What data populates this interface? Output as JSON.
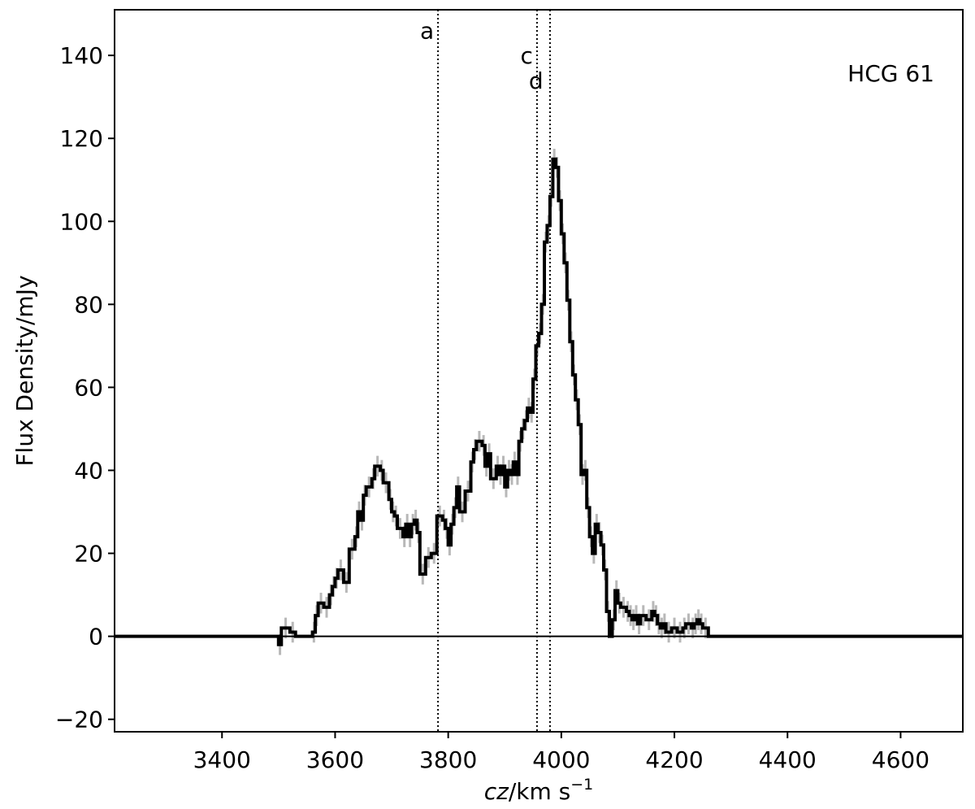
{
  "chart_data": {
    "type": "line",
    "title": "",
    "annotation": "HCG 61",
    "xlabel_italic": "cz",
    "xlabel_rest": "/km s",
    "xlabel_exp": "−1",
    "ylabel": "Flux Density/mJy",
    "xlim": [
      3210,
      4710
    ],
    "ylim": [
      -23,
      151
    ],
    "xticks": [
      3400,
      3600,
      3800,
      4000,
      4200,
      4400,
      4600
    ],
    "yticks": [
      -20,
      0,
      20,
      40,
      60,
      80,
      100,
      120,
      140
    ],
    "xtick_labels": [
      "3400",
      "3600",
      "3800",
      "4000",
      "4200",
      "4400",
      "4600"
    ],
    "ytick_labels": [
      "−20",
      "0",
      "20",
      "40",
      "60",
      "80",
      "100",
      "120",
      "140"
    ],
    "grid": false,
    "zero_line": true,
    "step_spectrum": [
      [
        3210,
        0
      ],
      [
        3500,
        0
      ],
      [
        3500,
        -2
      ],
      [
        3505,
        -2
      ],
      [
        3505,
        2
      ],
      [
        3520,
        2
      ],
      [
        3520,
        1
      ],
      [
        3530,
        1
      ],
      [
        3530,
        0
      ],
      [
        3560,
        0
      ],
      [
        3560,
        1
      ],
      [
        3565,
        1
      ],
      [
        3565,
        5
      ],
      [
        3570,
        5
      ],
      [
        3570,
        8
      ],
      [
        3580,
        8
      ],
      [
        3580,
        7
      ],
      [
        3590,
        7
      ],
      [
        3590,
        10
      ],
      [
        3595,
        10
      ],
      [
        3595,
        12
      ],
      [
        3600,
        12
      ],
      [
        3600,
        14
      ],
      [
        3605,
        14
      ],
      [
        3605,
        16
      ],
      [
        3615,
        16
      ],
      [
        3615,
        13
      ],
      [
        3625,
        13
      ],
      [
        3625,
        21
      ],
      [
        3635,
        21
      ],
      [
        3635,
        24
      ],
      [
        3640,
        24
      ],
      [
        3640,
        30
      ],
      [
        3645,
        30
      ],
      [
        3645,
        28
      ],
      [
        3650,
        28
      ],
      [
        3650,
        34
      ],
      [
        3655,
        34
      ],
      [
        3655,
        36
      ],
      [
        3665,
        36
      ],
      [
        3665,
        38
      ],
      [
        3670,
        38
      ],
      [
        3670,
        41
      ],
      [
        3680,
        41
      ],
      [
        3680,
        40
      ],
      [
        3685,
        40
      ],
      [
        3685,
        37
      ],
      [
        3695,
        37
      ],
      [
        3695,
        33
      ],
      [
        3700,
        33
      ],
      [
        3700,
        30
      ],
      [
        3705,
        30
      ],
      [
        3705,
        29
      ],
      [
        3710,
        29
      ],
      [
        3710,
        26
      ],
      [
        3720,
        26
      ],
      [
        3720,
        24
      ],
      [
        3725,
        24
      ],
      [
        3725,
        27
      ],
      [
        3730,
        27
      ],
      [
        3730,
        24
      ],
      [
        3735,
        24
      ],
      [
        3735,
        27
      ],
      [
        3740,
        27
      ],
      [
        3740,
        28
      ],
      [
        3745,
        28
      ],
      [
        3745,
        25
      ],
      [
        3750,
        25
      ],
      [
        3750,
        15
      ],
      [
        3760,
        15
      ],
      [
        3760,
        19
      ],
      [
        3770,
        19
      ],
      [
        3770,
        20
      ],
      [
        3780,
        20
      ],
      [
        3780,
        29
      ],
      [
        3790,
        29
      ],
      [
        3790,
        28
      ],
      [
        3795,
        28
      ],
      [
        3795,
        26
      ],
      [
        3800,
        26
      ],
      [
        3800,
        22
      ],
      [
        3805,
        22
      ],
      [
        3805,
        27
      ],
      [
        3810,
        27
      ],
      [
        3810,
        31
      ],
      [
        3815,
        31
      ],
      [
        3815,
        36
      ],
      [
        3820,
        36
      ],
      [
        3820,
        30
      ],
      [
        3830,
        30
      ],
      [
        3830,
        35
      ],
      [
        3840,
        35
      ],
      [
        3840,
        42
      ],
      [
        3845,
        42
      ],
      [
        3845,
        45
      ],
      [
        3850,
        45
      ],
      [
        3850,
        47
      ],
      [
        3860,
        47
      ],
      [
        3860,
        46
      ],
      [
        3865,
        46
      ],
      [
        3865,
        41
      ],
      [
        3870,
        41
      ],
      [
        3870,
        44
      ],
      [
        3875,
        44
      ],
      [
        3875,
        38
      ],
      [
        3885,
        38
      ],
      [
        3885,
        41
      ],
      [
        3890,
        41
      ],
      [
        3890,
        39
      ],
      [
        3895,
        39
      ],
      [
        3895,
        41
      ],
      [
        3900,
        41
      ],
      [
        3900,
        36
      ],
      [
        3905,
        36
      ],
      [
        3905,
        40
      ],
      [
        3910,
        40
      ],
      [
        3910,
        39
      ],
      [
        3915,
        39
      ],
      [
        3915,
        42
      ],
      [
        3920,
        42
      ],
      [
        3920,
        39
      ],
      [
        3925,
        39
      ],
      [
        3925,
        47
      ],
      [
        3930,
        47
      ],
      [
        3930,
        50
      ],
      [
        3935,
        50
      ],
      [
        3935,
        52
      ],
      [
        3940,
        52
      ],
      [
        3940,
        55
      ],
      [
        3945,
        55
      ],
      [
        3945,
        54
      ],
      [
        3950,
        54
      ],
      [
        3950,
        62
      ],
      [
        3955,
        62
      ],
      [
        3955,
        70
      ],
      [
        3960,
        70
      ],
      [
        3960,
        73
      ],
      [
        3965,
        73
      ],
      [
        3965,
        80
      ],
      [
        3970,
        80
      ],
      [
        3970,
        95
      ],
      [
        3975,
        95
      ],
      [
        3975,
        99
      ],
      [
        3980,
        99
      ],
      [
        3980,
        106
      ],
      [
        3985,
        106
      ],
      [
        3985,
        115
      ],
      [
        3990,
        115
      ],
      [
        3990,
        113
      ],
      [
        3995,
        113
      ],
      [
        3995,
        105
      ],
      [
        4000,
        105
      ],
      [
        4000,
        97
      ],
      [
        4005,
        97
      ],
      [
        4005,
        90
      ],
      [
        4010,
        90
      ],
      [
        4010,
        81
      ],
      [
        4015,
        81
      ],
      [
        4015,
        71
      ],
      [
        4020,
        71
      ],
      [
        4020,
        63
      ],
      [
        4025,
        63
      ],
      [
        4025,
        57
      ],
      [
        4030,
        57
      ],
      [
        4030,
        51
      ],
      [
        4035,
        51
      ],
      [
        4035,
        39
      ],
      [
        4040,
        39
      ],
      [
        4040,
        40
      ],
      [
        4045,
        40
      ],
      [
        4045,
        31
      ],
      [
        4050,
        31
      ],
      [
        4050,
        24
      ],
      [
        4055,
        24
      ],
      [
        4055,
        20
      ],
      [
        4060,
        20
      ],
      [
        4060,
        27
      ],
      [
        4065,
        27
      ],
      [
        4065,
        25
      ],
      [
        4070,
        25
      ],
      [
        4070,
        22
      ],
      [
        4075,
        22
      ],
      [
        4075,
        16
      ],
      [
        4080,
        16
      ],
      [
        4080,
        6
      ],
      [
        4085,
        6
      ],
      [
        4085,
        0
      ],
      [
        4090,
        0
      ],
      [
        4090,
        4
      ],
      [
        4095,
        4
      ],
      [
        4095,
        11
      ],
      [
        4100,
        11
      ],
      [
        4100,
        8
      ],
      [
        4105,
        8
      ],
      [
        4105,
        7
      ],
      [
        4115,
        7
      ],
      [
        4115,
        6
      ],
      [
        4120,
        6
      ],
      [
        4120,
        5
      ],
      [
        4125,
        5
      ],
      [
        4125,
        4
      ],
      [
        4130,
        4
      ],
      [
        4130,
        5
      ],
      [
        4135,
        5
      ],
      [
        4135,
        3
      ],
      [
        4140,
        3
      ],
      [
        4140,
        5
      ],
      [
        4150,
        5
      ],
      [
        4150,
        4
      ],
      [
        4160,
        4
      ],
      [
        4160,
        6
      ],
      [
        4165,
        6
      ],
      [
        4165,
        5
      ],
      [
        4170,
        5
      ],
      [
        4170,
        3
      ],
      [
        4175,
        3
      ],
      [
        4175,
        2
      ],
      [
        4180,
        2
      ],
      [
        4180,
        3
      ],
      [
        4185,
        3
      ],
      [
        4185,
        1
      ],
      [
        4195,
        1
      ],
      [
        4195,
        2
      ],
      [
        4205,
        2
      ],
      [
        4205,
        1
      ],
      [
        4215,
        1
      ],
      [
        4215,
        2
      ],
      [
        4220,
        2
      ],
      [
        4220,
        3
      ],
      [
        4230,
        3
      ],
      [
        4230,
        2
      ],
      [
        4235,
        2
      ],
      [
        4235,
        3
      ],
      [
        4240,
        3
      ],
      [
        4240,
        4
      ],
      [
        4245,
        4
      ],
      [
        4245,
        3
      ],
      [
        4250,
        3
      ],
      [
        4250,
        2
      ],
      [
        4260,
        2
      ],
      [
        4260,
        0
      ],
      [
        4710,
        0
      ]
    ],
    "vlines": [
      {
        "x": 3782,
        "label": "a",
        "label_y": 146
      },
      {
        "x": 3957,
        "label": "c",
        "label_y": 140
      },
      {
        "x": 3980,
        "label": "d",
        "label_y": 134
      }
    ],
    "colors": {
      "line": "#000000",
      "error_bars": "#b8b8b8"
    }
  }
}
